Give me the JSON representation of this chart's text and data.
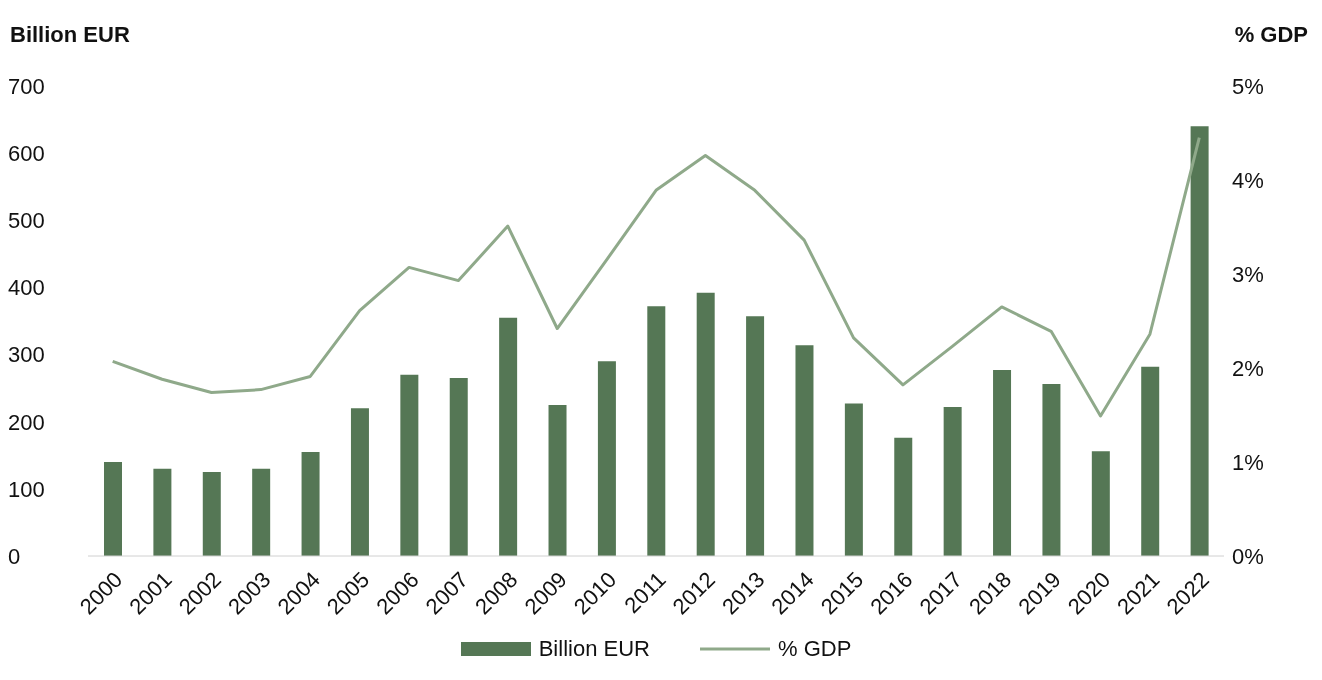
{
  "chart_data": {
    "type": "bar",
    "ylabel": "Billion EUR",
    "y2label": "% GDP",
    "categories": [
      "2000",
      "2001",
      "2002",
      "2003",
      "2004",
      "2005",
      "2006",
      "2007",
      "2008",
      "2009",
      "2010",
      "2011",
      "2012",
      "2013",
      "2014",
      "2015",
      "2016",
      "2017",
      "2018",
      "2019",
      "2020",
      "2021",
      "2022"
    ],
    "series": [
      {
        "name": "Billion EUR",
        "color": "#557755",
        "values": [
          140,
          130,
          125,
          130,
          155,
          220,
          270,
          265,
          355,
          225,
          290,
          372,
          392,
          357,
          314,
          227,
          176,
          222,
          277,
          256,
          156,
          282,
          640
        ]
      },
      {
        "name": "% GDP",
        "type": "line",
        "axis": "y2",
        "color": "#8fa98a",
        "values": [
          2.07,
          1.88,
          1.74,
          1.77,
          1.91,
          2.61,
          3.07,
          2.93,
          3.51,
          2.42,
          3.15,
          3.89,
          4.26,
          3.89,
          3.36,
          2.32,
          1.82,
          2.23,
          2.65,
          2.39,
          1.49,
          2.36,
          4.45
        ]
      }
    ],
    "ylim": [
      0,
      700
    ],
    "yticks": [
      0,
      100,
      200,
      300,
      400,
      500,
      600,
      700
    ],
    "y2lim": [
      0,
      5
    ],
    "y2ticks": [
      {
        "value": 0,
        "label": "0%"
      },
      {
        "value": 1,
        "label": "1%"
      },
      {
        "value": 2,
        "label": "2%"
      },
      {
        "value": 3,
        "label": "3%"
      },
      {
        "value": 4,
        "label": "4%"
      },
      {
        "value": 5,
        "label": "5%"
      }
    ],
    "grid": false,
    "legend": "bottom",
    "marker": "none",
    "line_style": "solid"
  }
}
